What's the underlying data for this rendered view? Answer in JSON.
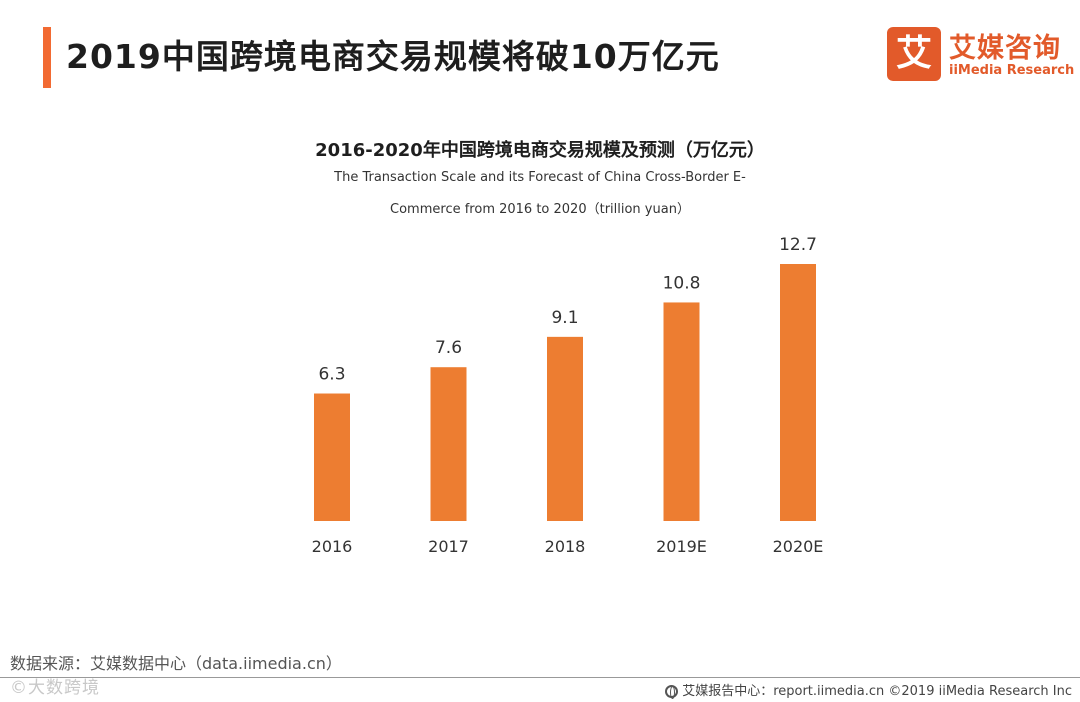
{
  "header": {
    "title": "2019中国跨境电商交易规模将破10万亿元",
    "accent_color": "#f26a32"
  },
  "logo": {
    "mark": "艾",
    "name_cn": "艾媒咨询",
    "name_en": "iiMedia Research",
    "brand_color": "#e25a2a"
  },
  "chart_data": {
    "type": "bar",
    "title": "2016-2020年中国跨境电商交易规模及预测（万亿元）",
    "subtitle_line1": "The Transaction Scale and its Forecast of China Cross-Border E-",
    "subtitle_line2": "Commerce from 2016 to 2020（trillion yuan）",
    "categories": [
      "2016",
      "2017",
      "2018",
      "2019E",
      "2020E"
    ],
    "values": [
      6.3,
      7.6,
      9.1,
      10.8,
      12.7
    ],
    "value_labels": [
      "6.3",
      "7.6",
      "9.1",
      "10.8",
      "12.7"
    ],
    "xlabel": "",
    "ylabel": "",
    "ylim": [
      0,
      12.7
    ],
    "grid": false,
    "bar_color": "#ed7d31"
  },
  "footer": {
    "source": "数据来源：艾媒数据中心（data.iimedia.cn）",
    "watermark": "©大数跨境",
    "copyright": "艾媒报告中心：report.iimedia.cn  ©2019  iiMedia Research  Inc"
  }
}
